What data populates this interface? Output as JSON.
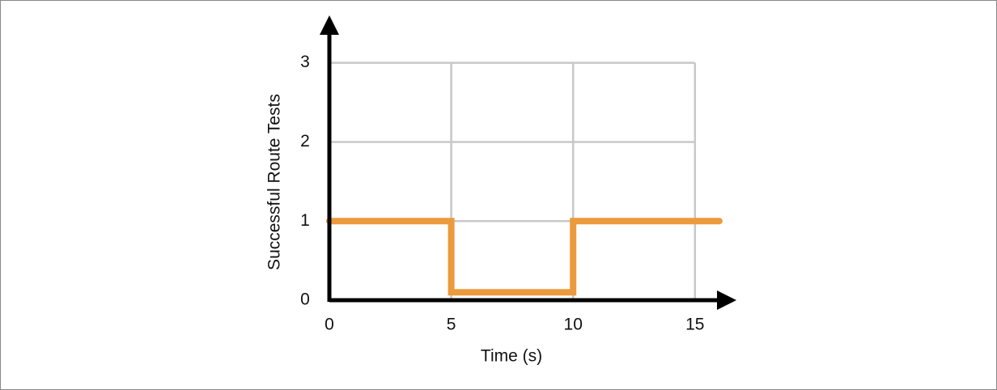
{
  "chart_data": {
    "type": "line",
    "x_label": "Time (s)",
    "y_label": "Successful Route Tests",
    "series": [
      {
        "name": "Successful Route Tests",
        "color": "#ec9a3c",
        "x": [
          0,
          5,
          5,
          10,
          10,
          16
        ],
        "values": [
          1,
          1,
          0.1,
          0.1,
          1,
          1
        ]
      }
    ],
    "xlim": [
      0,
      16.7
    ],
    "xticks": [
      0,
      5,
      10,
      15
    ],
    "ylim": [
      0,
      3.6
    ],
    "yticks": [
      0,
      1,
      2,
      3
    ],
    "grid": true,
    "grid_color": "#c8c8c8",
    "axis_color": "#000000"
  }
}
